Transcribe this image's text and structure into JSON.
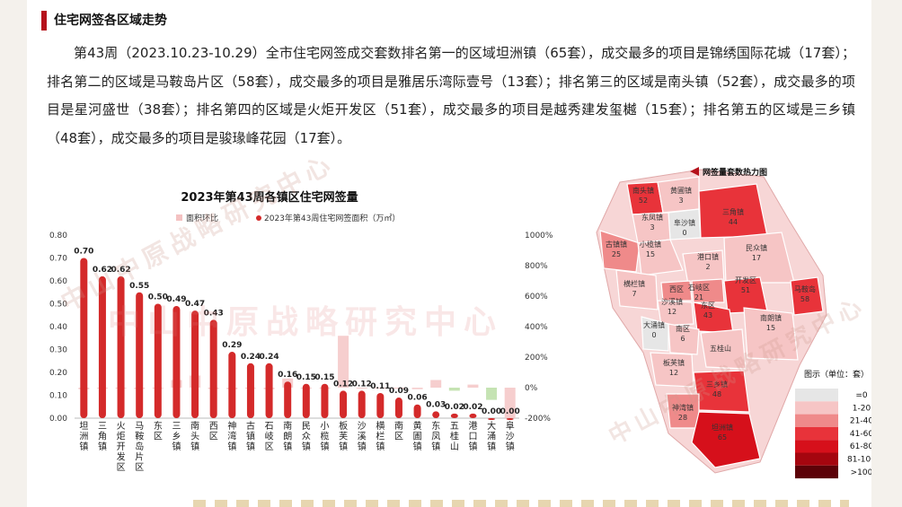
{
  "header": {
    "title": "住宅网签各区域走势"
  },
  "summary": "第43周（2023.10.23-10.29）全市住宅网签成交套数排名第一的区域坦洲镇（65套），成交最多的项目是锦绣国际花城（17套）；排名第二的区域是马鞍岛片区（58套），成交最多的项目是雅居乐湾际壹号（13套）；排名第三的区域是南头镇（52套），成交最多的项目是星河盛世（38套）；排名第四的区域是火炬开发区（51套），成交最多的项目是越秀建发玺樾（15套）；排名第五的区域是三乡镇（48套），成交最多的项目是骏瑑峰花园（17套）。",
  "watermark": "中山中原战略研究中心",
  "chart_data": {
    "type": "bar",
    "title": "2023年第43周各镇区住宅网签量",
    "legend": [
      "面积环比",
      "2023年第43周住宅网签面积（万㎡）"
    ],
    "categories": [
      "坦洲镇",
      "三角镇",
      "火炬开发区",
      "马鞍岛片区",
      "东区",
      "三乡镇",
      "南头镇",
      "西区",
      "神湾镇",
      "古镇镇",
      "石岐区",
      "南朗镇",
      "民众镇",
      "小榄镇",
      "板芙镇",
      "沙溪镇",
      "横栏镇",
      "南区",
      "黄圃镇",
      "东凤镇",
      "五桂山",
      "港口镇",
      "大涌镇",
      "阜沙镇"
    ],
    "category_labels": [
      "坦\n洲\n镇",
      "三\n角\n镇",
      "火\n炬\n开\n发\n区",
      "马\n鞍\n岛\n片\n区",
      "东\n区",
      "三\n乡\n镇",
      "南\n头\n镇",
      "西\n区",
      "神\n湾\n镇",
      "古\n镇\n镇",
      "石\n岐\n区",
      "南\n朗\n镇",
      "民\n众\n镇",
      "小\n榄\n镇",
      "板\n芙\n镇",
      "沙\n溪\n镇",
      "横\n栏\n镇",
      "南\n区",
      "黄\n圃\n镇",
      "东\n凤\n镇",
      "五\n桂\n山",
      "港\n口\n镇",
      "大\n涌\n镇",
      "阜\n沙\n镇"
    ],
    "area_values": [
      0.7,
      0.62,
      0.62,
      0.55,
      0.5,
      0.49,
      0.47,
      0.43,
      0.29,
      0.24,
      0.24,
      0.16,
      0.15,
      0.15,
      0.12,
      0.12,
      0.11,
      0.09,
      0.06,
      0.03,
      0.02,
      0.02,
      0.0,
      0.0
    ],
    "area_labels": [
      "0.70",
      "0.62",
      "0.62",
      "0.55",
      "0.50",
      "0.49",
      "0.47",
      "0.43",
      "0.29",
      "0.24",
      "0.24",
      "0.16",
      "0.15",
      "0.15",
      "0.12",
      "0.12",
      "0.11",
      "0.09",
      "0.06",
      "0.03",
      "0.02",
      "0.02",
      "0.00",
      "0.00"
    ],
    "mom_pct": [
      -10,
      -5,
      -5,
      -8,
      -5,
      50,
      80,
      -8,
      -10,
      -5,
      -10,
      60,
      -5,
      -5,
      340,
      -5,
      -5,
      -5,
      -10,
      50,
      -20,
      20,
      -80,
      -200
    ],
    "left_axis": {
      "ylim": [
        0,
        0.8
      ],
      "ticks": [
        "0.00",
        "0.10",
        "0.20",
        "0.30",
        "0.40",
        "0.50",
        "0.60",
        "0.70",
        "0.80"
      ]
    },
    "right_axis": {
      "ylim": [
        -200,
        1000
      ],
      "ticks": [
        "-200%",
        "0%",
        "200%",
        "400%",
        "600%",
        "800%",
        "1000%"
      ]
    },
    "colors": {
      "area_bar": "#d42a2a",
      "mom_bar": "#f4c2c2",
      "mom_green": "#b6dca0"
    }
  },
  "map": {
    "title": "网签量套数热力图",
    "legend_title": "图示（单位：套）",
    "legend_items": [
      {
        "label": "=0",
        "color": "#e6e6e6"
      },
      {
        "label": "1-20",
        "color": "#f6c5c5"
      },
      {
        "label": "21-40",
        "color": "#ef8a8a"
      },
      {
        "label": "41-60",
        "color": "#e8333a"
      },
      {
        "label": "61-80",
        "color": "#d6101b"
      },
      {
        "label": "81-100",
        "color": "#a5060f"
      },
      {
        "label": ">100",
        "color": "#5c0208"
      }
    ],
    "regions": [
      {
        "name": "南头镇",
        "value": "52",
        "color": "#e8333a"
      },
      {
        "name": "黄圃镇",
        "value": "3",
        "color": "#f6c5c5"
      },
      {
        "name": "阜沙镇",
        "value": "0",
        "color": "#e6e6e6"
      },
      {
        "name": "东凤镇",
        "value": "3",
        "color": "#f6c5c5"
      },
      {
        "name": "三角镇",
        "value": "44",
        "color": "#e8333a"
      },
      {
        "name": "古镇镇",
        "value": "25",
        "color": "#ef8a8a"
      },
      {
        "name": "小榄镇",
        "value": "15",
        "color": "#f6c5c5"
      },
      {
        "name": "港口镇",
        "value": "2",
        "color": "#f6c5c5"
      },
      {
        "name": "民众镇",
        "value": "17",
        "color": "#f6c5c5"
      },
      {
        "name": "横栏镇",
        "value": "7",
        "color": "#f6c5c5"
      },
      {
        "name": "西区",
        "value": "",
        "color": "#ef8a8a"
      },
      {
        "name": "石岐区",
        "value": "21",
        "color": "#ef8a8a"
      },
      {
        "name": "开发区",
        "value": "51",
        "color": "#e8333a"
      },
      {
        "name": "马鞍岛",
        "value": "58",
        "color": "#e8333a"
      },
      {
        "name": "沙溪镇",
        "value": "12",
        "color": "#f6c5c5"
      },
      {
        "name": "东区",
        "value": "43",
        "color": "#e8333a"
      },
      {
        "name": "大涌镇",
        "value": "0",
        "color": "#e6e6e6"
      },
      {
        "name": "南区",
        "value": "6",
        "color": "#f6c5c5"
      },
      {
        "name": "南朗镇",
        "value": "15",
        "color": "#f6c5c5"
      },
      {
        "name": "五桂山",
        "value": "",
        "color": "#f6c5c5"
      },
      {
        "name": "板芙镇",
        "value": "12",
        "color": "#f6c5c5"
      },
      {
        "name": "三乡镇",
        "value": "48",
        "color": "#e8333a"
      },
      {
        "name": "神湾镇",
        "value": "28",
        "color": "#ef8a8a"
      },
      {
        "name": "坦洲镇",
        "value": "65",
        "color": "#d6101b"
      }
    ]
  }
}
